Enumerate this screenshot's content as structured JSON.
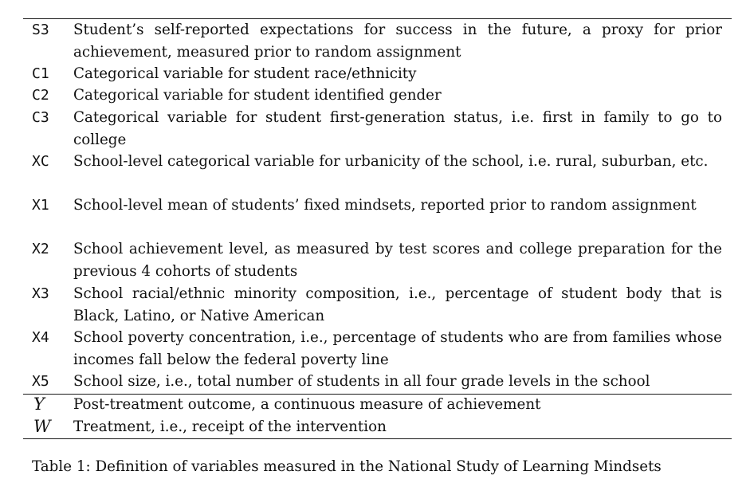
{
  "table": {
    "rows": [
      {
        "var": "S3",
        "desc": "Student’s self-reported expectations for success in the future, a proxy for prior achievement, measured prior to random assignment"
      },
      {
        "var": "C1",
        "desc": "Categorical variable for student race/ethnicity"
      },
      {
        "var": "C2",
        "desc": "Categorical variable for student identified gender"
      },
      {
        "var": "C3",
        "desc": "Categorical variable for student first-generation status, i.e. first in family to go to college"
      },
      {
        "var": "XC",
        "desc": "School-level categorical variable for urbanicity of the school, i.e. rural, suburban, etc."
      },
      {
        "var": "X1",
        "desc": "School-level mean of students’ fixed mindsets, reported prior to random assignment"
      },
      {
        "var": "X2",
        "desc": "School achievement level, as measured by test scores and college preparation for the previous 4 cohorts of students"
      },
      {
        "var": "X3",
        "desc": "School racial/ethnic minority composition, i.e., percentage of student body that is Black, Latino, or Native American"
      },
      {
        "var": "X4",
        "desc": "School poverty concentration, i.e., percentage of students who are from families whose incomes fall below the federal poverty line"
      },
      {
        "var": "X5",
        "desc": "School size, i.e., total number of students in all four grade levels in the school"
      }
    ],
    "outcome_rows": [
      {
        "var": "Y",
        "desc": "Post-treatment outcome, a continuous measure of achievement"
      },
      {
        "var": "W",
        "desc": "Treatment, i.e., receipt of the intervention"
      }
    ]
  },
  "caption": "Table 1: Definition of variables measured in the National Study of Learning Mindsets"
}
